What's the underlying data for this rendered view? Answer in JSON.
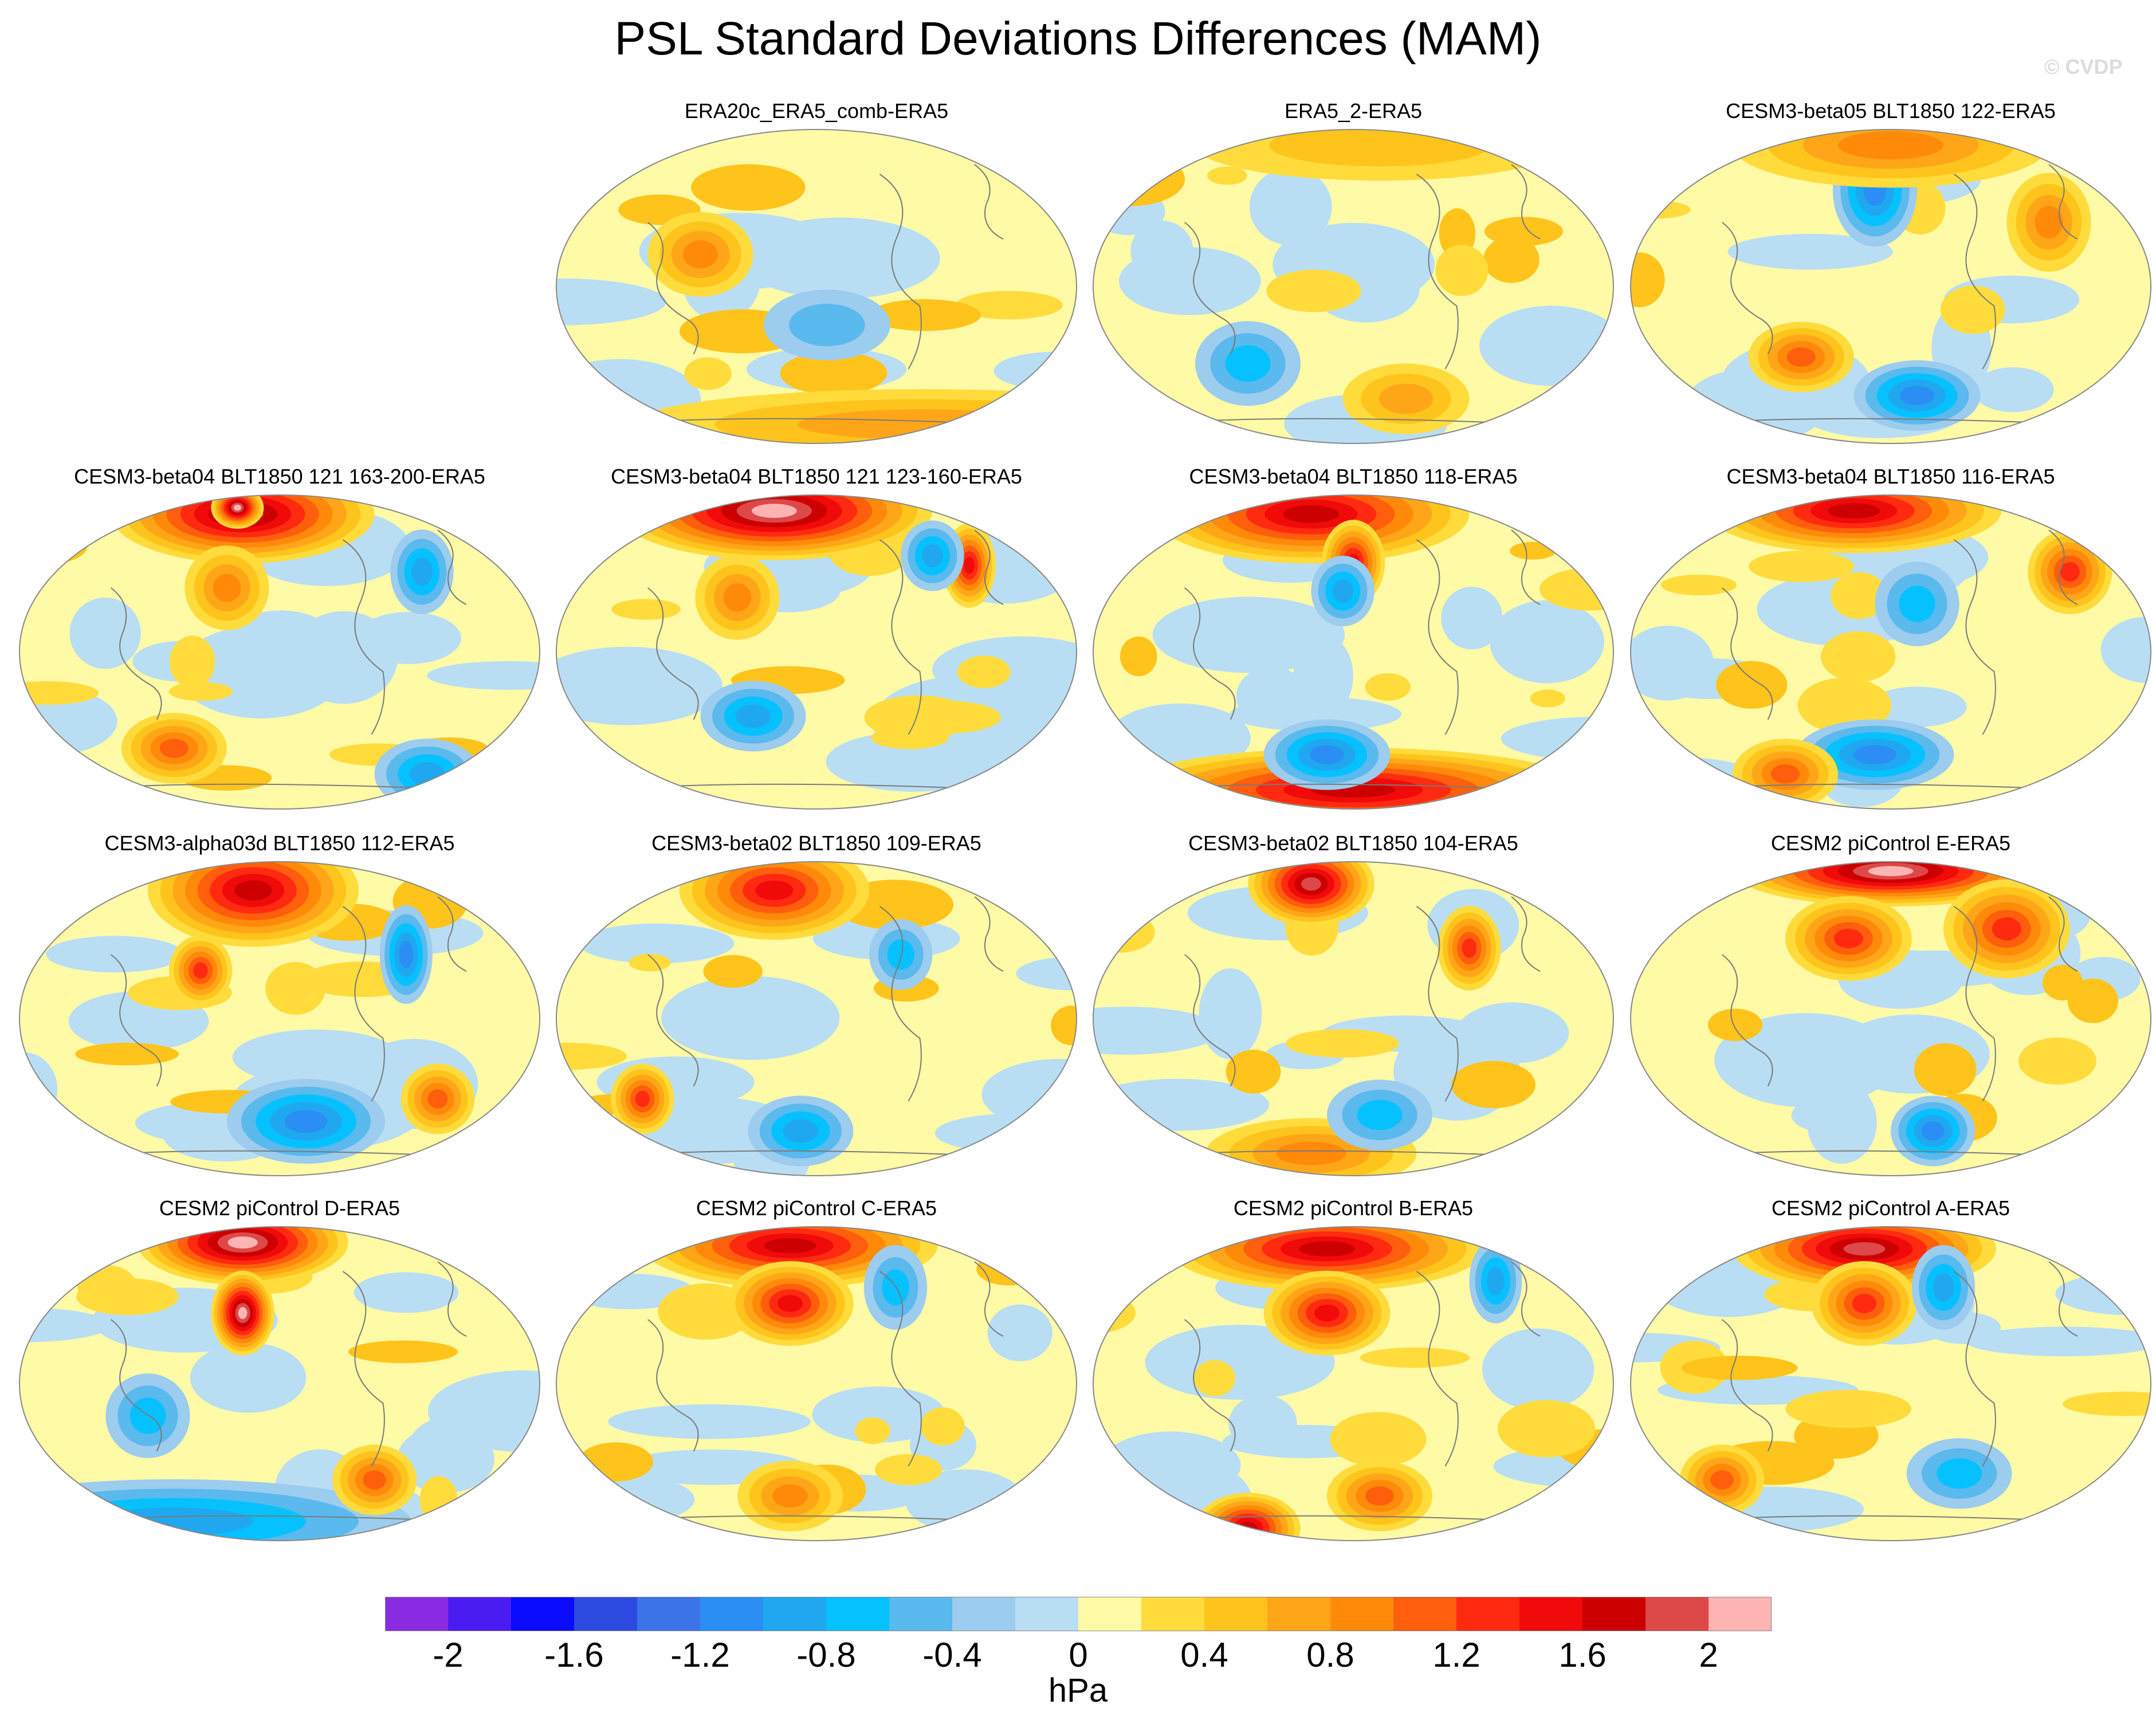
{
  "title": "PSL Standard Deviations Differences (MAM)",
  "copyright": "© CVDP",
  "chart_data": {
    "type": "heatmap",
    "projection": "global map (Robinson-like), Pacific-centered",
    "variable": "PSL",
    "season": "MAM",
    "panels": [
      {
        "title": "ERA20c_ERA5_comb-ERA5",
        "features": [
          [
            0.7,
            0.93,
            0.55,
            0.05,
            3
          ],
          [
            0.28,
            0.4,
            0.1,
            0.06,
            4
          ],
          [
            0.52,
            0.62,
            0.12,
            0.05,
            -2
          ]
        ]
      },
      {
        "title": "ERA5_2-ERA5",
        "features": [
          [
            0.3,
            0.74,
            0.1,
            0.06,
            -3
          ],
          [
            0.55,
            0.06,
            0.35,
            0.05,
            2
          ],
          [
            0.6,
            0.85,
            0.12,
            0.05,
            3
          ]
        ]
      },
      {
        "title": "CESM3-beta05 BLT1850 122-ERA5",
        "features": [
          [
            0.47,
            0.2,
            0.08,
            0.08,
            -5
          ],
          [
            0.5,
            0.06,
            0.3,
            0.06,
            4
          ],
          [
            0.8,
            0.3,
            0.08,
            0.07,
            4
          ],
          [
            0.55,
            0.84,
            0.12,
            0.05,
            -5
          ],
          [
            0.33,
            0.72,
            0.1,
            0.05,
            5
          ]
        ]
      },
      {
        "title": "CESM3-beta04 BLT1850 121 163-200-ERA5",
        "features": [
          [
            0.43,
            0.07,
            0.25,
            0.07,
            9
          ],
          [
            0.42,
            0.05,
            0.05,
            0.03,
            10
          ],
          [
            0.4,
            0.3,
            0.08,
            0.06,
            4
          ],
          [
            0.77,
            0.25,
            0.06,
            0.06,
            -4
          ],
          [
            0.3,
            0.8,
            0.1,
            0.05,
            5
          ],
          [
            0.78,
            0.88,
            0.1,
            0.05,
            -4
          ]
        ]
      },
      {
        "title": "CESM3-beta04 BLT1850 121 123-160-ERA5",
        "features": [
          [
            0.42,
            0.06,
            0.3,
            0.07,
            10
          ],
          [
            0.79,
            0.23,
            0.05,
            0.06,
            7
          ],
          [
            0.72,
            0.2,
            0.06,
            0.05,
            -4
          ],
          [
            0.38,
            0.7,
            0.1,
            0.05,
            -4
          ],
          [
            0.35,
            0.33,
            0.08,
            0.06,
            4
          ]
        ]
      },
      {
        "title": "CESM3-beta04 BLT1850 118-ERA5",
        "features": [
          [
            0.42,
            0.07,
            0.3,
            0.07,
            8
          ],
          [
            0.5,
            0.93,
            0.45,
            0.06,
            8
          ],
          [
            0.5,
            0.22,
            0.06,
            0.06,
            7
          ],
          [
            0.48,
            0.31,
            0.06,
            0.05,
            -4
          ],
          [
            0.45,
            0.82,
            0.12,
            0.05,
            -5
          ]
        ]
      },
      {
        "title": "CESM3-beta04 BLT1850 116-ERA5",
        "features": [
          [
            0.43,
            0.06,
            0.28,
            0.06,
            8
          ],
          [
            0.84,
            0.25,
            0.08,
            0.06,
            6
          ],
          [
            0.55,
            0.35,
            0.08,
            0.06,
            -3
          ],
          [
            0.47,
            0.82,
            0.15,
            0.05,
            -5
          ],
          [
            0.3,
            0.88,
            0.1,
            0.05,
            5
          ]
        ]
      },
      {
        "title": "CESM3-alpha03d BLT1850 112-ERA5",
        "features": [
          [
            0.45,
            0.1,
            0.2,
            0.08,
            8
          ],
          [
            0.35,
            0.35,
            0.06,
            0.05,
            6
          ],
          [
            0.74,
            0.3,
            0.05,
            0.07,
            -5
          ],
          [
            0.55,
            0.82,
            0.15,
            0.06,
            -5
          ],
          [
            0.8,
            0.75,
            0.07,
            0.05,
            5
          ]
        ]
      },
      {
        "title": "CESM3-beta02 BLT1850 109-ERA5",
        "features": [
          [
            0.42,
            0.1,
            0.18,
            0.07,
            7
          ],
          [
            0.17,
            0.75,
            0.06,
            0.05,
            6
          ],
          [
            0.47,
            0.85,
            0.1,
            0.05,
            -4
          ],
          [
            0.66,
            0.3,
            0.06,
            0.05,
            -3
          ]
        ]
      },
      {
        "title": "CESM3-beta02 BLT1850 104-ERA5",
        "features": [
          [
            0.42,
            0.08,
            0.12,
            0.06,
            9
          ],
          [
            0.72,
            0.28,
            0.06,
            0.06,
            6
          ],
          [
            0.42,
            0.92,
            0.2,
            0.05,
            4
          ],
          [
            0.55,
            0.8,
            0.1,
            0.05,
            -3
          ]
        ]
      },
      {
        "title": "CESM2 piControl E-ERA5",
        "features": [
          [
            0.5,
            0.04,
            0.3,
            0.05,
            10
          ],
          [
            0.42,
            0.25,
            0.12,
            0.06,
            6
          ],
          [
            0.72,
            0.22,
            0.12,
            0.07,
            6
          ],
          [
            0.58,
            0.85,
            0.08,
            0.05,
            -5
          ]
        ]
      },
      {
        "title": "CESM2 piControl D-ERA5",
        "features": [
          [
            0.43,
            0.06,
            0.2,
            0.06,
            10
          ],
          [
            0.43,
            0.28,
            0.06,
            0.06,
            10
          ],
          [
            0.3,
            0.93,
            0.45,
            0.06,
            -4
          ],
          [
            0.25,
            0.6,
            0.08,
            0.06,
            -3
          ],
          [
            0.68,
            0.8,
            0.08,
            0.05,
            5
          ]
        ]
      },
      {
        "title": "CESM2 piControl C-ERA5",
        "features": [
          [
            0.45,
            0.07,
            0.28,
            0.06,
            8
          ],
          [
            0.45,
            0.25,
            0.12,
            0.06,
            7
          ],
          [
            0.65,
            0.2,
            0.06,
            0.06,
            -3
          ],
          [
            0.45,
            0.85,
            0.1,
            0.05,
            4
          ]
        ]
      },
      {
        "title": "CESM2 piControl B-ERA5",
        "features": [
          [
            0.45,
            0.08,
            0.3,
            0.06,
            8
          ],
          [
            0.45,
            0.28,
            0.12,
            0.06,
            7
          ],
          [
            0.77,
            0.18,
            0.05,
            0.06,
            -4
          ],
          [
            0.3,
            0.95,
            0.1,
            0.05,
            8
          ],
          [
            0.55,
            0.85,
            0.1,
            0.05,
            5
          ]
        ]
      },
      {
        "title": "CESM2 piControl A-ERA5",
        "features": [
          [
            0.45,
            0.08,
            0.25,
            0.06,
            9
          ],
          [
            0.45,
            0.25,
            0.1,
            0.06,
            6
          ],
          [
            0.6,
            0.2,
            0.06,
            0.06,
            -4
          ],
          [
            0.63,
            0.78,
            0.1,
            0.05,
            -3
          ],
          [
            0.18,
            0.8,
            0.08,
            0.05,
            5
          ]
        ]
      }
    ],
    "colorbar": {
      "units": "hPa",
      "range": [
        -2.2,
        2.2
      ],
      "tick_labels": [
        "-2",
        "-1.6",
        "-1.2",
        "-0.8",
        "-0.4",
        "0",
        "0.4",
        "0.8",
        "1.2",
        "1.6",
        "2"
      ],
      "tick_values": [
        -2,
        -1.6,
        -1.2,
        -0.8,
        -0.4,
        0,
        0.4,
        0.8,
        1.2,
        1.6,
        2
      ],
      "colors": [
        "#8a2be2",
        "#4b1cf2",
        "#0a0aff",
        "#2d4ae0",
        "#3a74e8",
        "#2a8ef4",
        "#1fa8f0",
        "#05c1ff",
        "#5ab9ed",
        "#9cccee",
        "#b9def4",
        "#fffaa6",
        "#ffdc3c",
        "#ffc41c",
        "#ffa618",
        "#ff8a0a",
        "#ff5e0c",
        "#ff2a10",
        "#f00a0a",
        "#cc0000",
        "#dd4848",
        "#ffb4b4"
      ]
    }
  }
}
